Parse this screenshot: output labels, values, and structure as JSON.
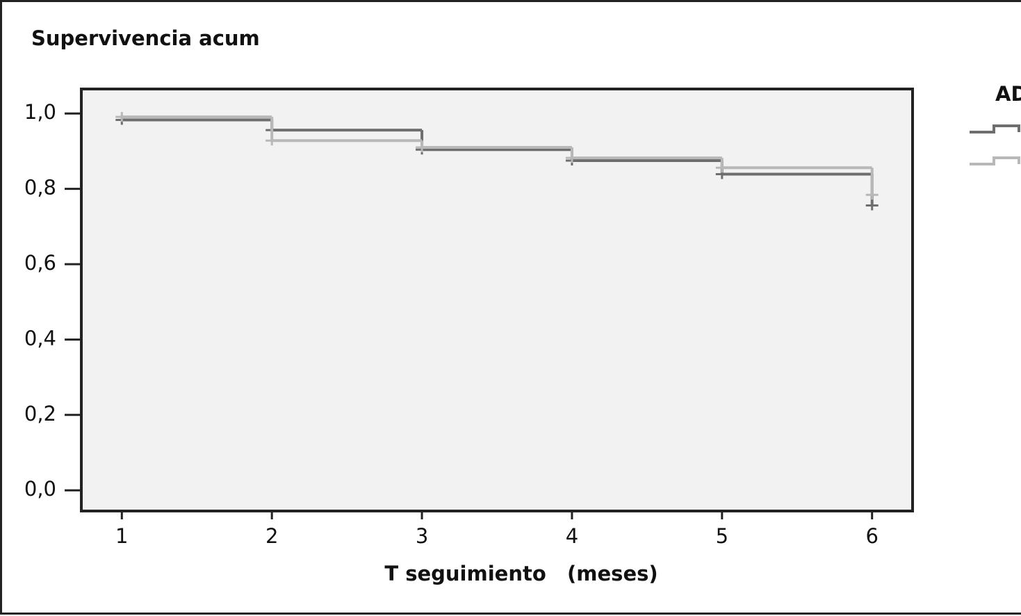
{
  "chart_data": {
    "type": "step",
    "y_label": "Supervivencia acum",
    "x_label": "T seguimiento   (meses)",
    "legend_title": "AD",
    "xlim": [
      0.73,
      6.27
    ],
    "xticks": [
      1,
      2,
      3,
      4,
      5,
      6
    ],
    "ylim": [
      -0.055,
      1.065
    ],
    "yticks": [
      {
        "value": 0,
        "label": "0,0"
      },
      {
        "value": 0.2,
        "label": "0,2"
      },
      {
        "value": 0.4,
        "label": "0,4"
      },
      {
        "value": 0.6,
        "label": "0,6"
      },
      {
        "value": 0.8,
        "label": "0,8"
      },
      {
        "value": 1,
        "label": "1,0"
      }
    ],
    "series": [
      {
        "color": "#6e6e6e",
        "x": [
          1,
          2,
          3,
          4,
          5,
          6
        ],
        "values": [
          0.983,
          0.956,
          0.904,
          0.875,
          0.839,
          0.756
        ]
      },
      {
        "color": "#b8b8b8",
        "x": [
          1,
          2,
          3,
          4,
          5,
          6
        ],
        "values": [
          0.991,
          0.928,
          0.91,
          0.882,
          0.856,
          0.784
        ]
      }
    ]
  }
}
